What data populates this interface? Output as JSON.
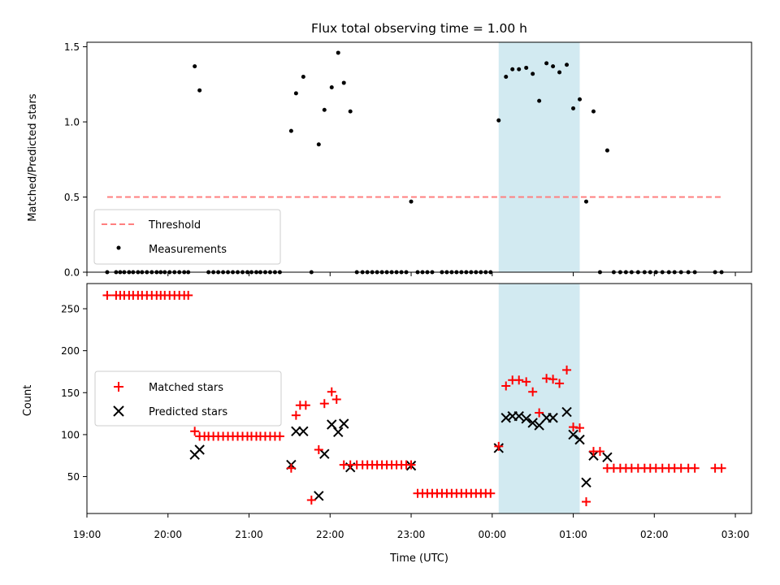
{
  "chart_data": [
    {
      "type": "scatter",
      "title": "Flux total observing time = 1.00 h",
      "xlabel": "",
      "ylabel": "Matched/Predicted stars",
      "x_unit": "hours since 2024-01-01 19:00 UTC (axis labels show clock time)",
      "xlim": [
        19.0,
        27.2
      ],
      "ylim": [
        0.0,
        1.53
      ],
      "yticks": [
        0.0,
        0.5,
        1.0,
        1.5
      ],
      "ytick_labels": [
        "0.0",
        "0.5",
        "1.0",
        "1.5"
      ],
      "highlight_span": [
        24.08,
        25.08
      ],
      "highlight_color": "#add8e6",
      "legend": {
        "position": "lower-left",
        "entries": [
          "Threshold",
          "Measurements"
        ]
      },
      "series": [
        {
          "name": "Threshold",
          "style": "dashed-line",
          "color": "#ff7f7f",
          "x": [
            19.25,
            26.83
          ],
          "y": [
            0.5,
            0.5
          ]
        },
        {
          "name": "Measurements",
          "style": "dot",
          "color": "#000000",
          "x": [
            19.25,
            19.36,
            19.41,
            19.46,
            19.52,
            19.57,
            19.63,
            19.68,
            19.74,
            19.8,
            19.86,
            19.91,
            19.96,
            20.02,
            20.08,
            20.14,
            20.2,
            20.25,
            20.33,
            20.39,
            20.5,
            20.56,
            20.62,
            20.68,
            20.74,
            20.8,
            20.86,
            20.92,
            20.98,
            21.03,
            21.09,
            21.14,
            21.2,
            21.26,
            21.32,
            21.38,
            21.52,
            21.58,
            21.67,
            21.77,
            21.86,
            21.93,
            22.02,
            22.1,
            22.17,
            22.25,
            22.33,
            22.4,
            22.46,
            22.52,
            22.58,
            22.64,
            22.7,
            22.76,
            22.82,
            22.88,
            22.94,
            23.0,
            23.08,
            23.14,
            23.2,
            23.26,
            23.38,
            23.44,
            23.5,
            23.56,
            23.62,
            23.68,
            23.74,
            23.8,
            23.86,
            23.92,
            23.98,
            24.08,
            24.17,
            24.25,
            24.33,
            24.42,
            24.5,
            24.58,
            24.67,
            24.75,
            24.83,
            24.92,
            25.0,
            25.08,
            25.16,
            25.25,
            25.33,
            25.42,
            25.5,
            25.58,
            25.65,
            25.72,
            25.8,
            25.88,
            25.95,
            26.02,
            26.1,
            26.18,
            26.25,
            26.33,
            26.42,
            26.5,
            26.75,
            26.83
          ],
          "y": [
            0.0,
            0.0,
            0.0,
            0.0,
            0.0,
            0.0,
            0.0,
            0.0,
            0.0,
            0.0,
            0.0,
            0.0,
            0.0,
            0.0,
            0.0,
            0.0,
            0.0,
            0.0,
            1.37,
            1.21,
            0.0,
            0.0,
            0.0,
            0.0,
            0.0,
            0.0,
            0.0,
            0.0,
            0.0,
            0.0,
            0.0,
            0.0,
            0.0,
            0.0,
            0.0,
            0.0,
            0.94,
            1.19,
            1.3,
            0.0,
            0.85,
            1.08,
            1.23,
            1.46,
            1.26,
            1.07,
            0.0,
            0.0,
            0.0,
            0.0,
            0.0,
            0.0,
            0.0,
            0.0,
            0.0,
            0.0,
            0.0,
            0.47,
            0.0,
            0.0,
            0.0,
            0.0,
            0.0,
            0.0,
            0.0,
            0.0,
            0.0,
            0.0,
            0.0,
            0.0,
            0.0,
            0.0,
            0.0,
            1.01,
            1.3,
            1.35,
            1.35,
            1.36,
            1.32,
            1.14,
            1.39,
            1.37,
            1.33,
            1.38,
            1.09,
            1.15,
            0.47,
            1.07,
            0.0,
            0.81,
            0.0,
            0.0,
            0.0,
            0.0,
            0.0,
            0.0,
            0.0,
            0.0,
            0.0,
            0.0,
            0.0,
            0.0,
            0.0,
            0.0,
            0.0,
            0.0
          ]
        }
      ]
    },
    {
      "type": "scatter",
      "title": "",
      "xlabel": "Time (UTC)",
      "ylabel": "Count",
      "x_unit": "hours since 2024-01-01 19:00 UTC (axis labels show clock time)",
      "xlim": [
        19.0,
        27.2
      ],
      "ylim": [
        6,
        280
      ],
      "xticks": [
        19,
        20,
        21,
        22,
        23,
        24,
        25,
        26,
        27
      ],
      "xtick_labels": [
        "19:00",
        "20:00",
        "21:00",
        "22:00",
        "23:00",
        "00:00",
        "01:00",
        "02:00",
        "03:00"
      ],
      "yticks": [
        50,
        100,
        150,
        200,
        250
      ],
      "ytick_labels": [
        "50",
        "100",
        "150",
        "200",
        "250"
      ],
      "highlight_span": [
        24.08,
        25.08
      ],
      "highlight_color": "#add8e6",
      "legend": {
        "position": "center-left",
        "entries": [
          "Matched stars",
          "Predicted stars"
        ]
      },
      "series": [
        {
          "name": "Matched stars",
          "style": "plus",
          "color": "#ff0000",
          "x": [
            19.25,
            19.36,
            19.41,
            19.46,
            19.52,
            19.57,
            19.63,
            19.68,
            19.74,
            19.8,
            19.86,
            19.91,
            19.96,
            20.02,
            20.08,
            20.14,
            20.2,
            20.25,
            20.33,
            20.39,
            20.45,
            20.5,
            20.56,
            20.62,
            20.68,
            20.74,
            20.8,
            20.86,
            20.92,
            20.98,
            21.03,
            21.09,
            21.14,
            21.2,
            21.26,
            21.32,
            21.38,
            21.52,
            21.58,
            21.63,
            21.7,
            21.77,
            21.86,
            21.93,
            22.02,
            22.08,
            22.17,
            22.25,
            22.33,
            22.4,
            22.46,
            22.52,
            22.58,
            22.64,
            22.7,
            22.76,
            22.82,
            22.88,
            22.94,
            23.0,
            23.08,
            23.14,
            23.2,
            23.26,
            23.32,
            23.38,
            23.44,
            23.5,
            23.56,
            23.62,
            23.68,
            23.74,
            23.8,
            23.86,
            23.92,
            23.98,
            24.08,
            24.17,
            24.25,
            24.33,
            24.42,
            24.5,
            24.58,
            24.67,
            24.75,
            24.83,
            24.92,
            25.0,
            25.08,
            25.16,
            25.25,
            25.33,
            25.42,
            25.5,
            25.58,
            25.65,
            25.72,
            25.8,
            25.88,
            25.95,
            26.02,
            26.1,
            26.18,
            26.25,
            26.33,
            26.42,
            26.5,
            26.75,
            26.83
          ],
          "y": [
            266,
            266,
            266,
            266,
            266,
            266,
            266,
            266,
            266,
            266,
            266,
            266,
            266,
            266,
            266,
            266,
            266,
            266,
            104,
            98,
            98,
            98,
            98,
            98,
            98,
            98,
            98,
            98,
            98,
            98,
            98,
            98,
            98,
            98,
            98,
            98,
            98,
            60,
            123,
            135,
            135,
            22,
            82,
            137,
            151,
            142,
            64,
            64,
            64,
            64,
            64,
            64,
            64,
            64,
            64,
            64,
            64,
            64,
            64,
            64,
            30,
            30,
            30,
            30,
            30,
            30,
            30,
            30,
            30,
            30,
            30,
            30,
            30,
            30,
            30,
            30,
            86,
            158,
            165,
            165,
            163,
            151,
            126,
            167,
            166,
            161,
            177,
            109,
            108,
            20,
            80,
            80,
            60,
            60,
            60,
            60,
            60,
            60,
            60,
            60,
            60,
            60,
            60,
            60,
            60,
            60,
            60,
            60,
            60
          ]
        },
        {
          "name": "Predicted stars",
          "style": "x",
          "color": "#000000",
          "x": [
            20.33,
            20.39,
            21.52,
            21.58,
            21.67,
            21.86,
            21.93,
            22.02,
            22.1,
            22.17,
            22.25,
            23.0,
            24.08,
            24.17,
            24.25,
            24.33,
            24.42,
            24.5,
            24.58,
            24.67,
            24.75,
            24.92,
            25.0,
            25.08,
            25.16,
            25.25,
            25.42
          ],
          "y": [
            76,
            82,
            64,
            104,
            104,
            27,
            77,
            112,
            103,
            113,
            61,
            63,
            84,
            120,
            122,
            122,
            119,
            114,
            111,
            120,
            120,
            127,
            100,
            94,
            43,
            75,
            73
          ]
        }
      ]
    }
  ]
}
